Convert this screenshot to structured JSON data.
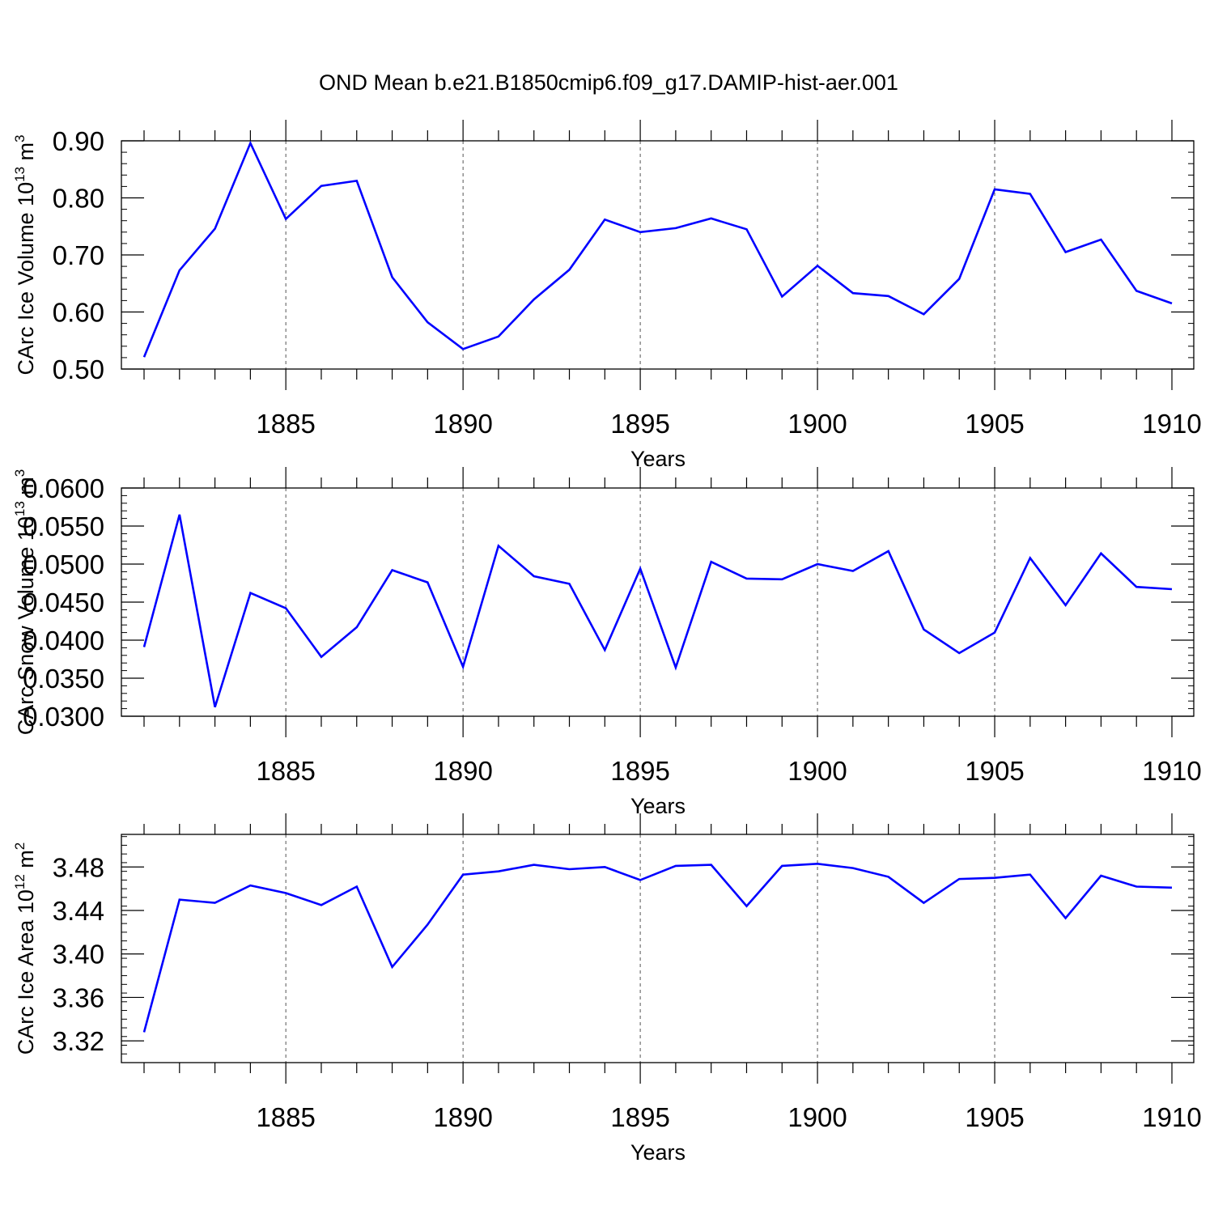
{
  "title": "OND Mean b.e21.B1850cmip6.f09_g17.DAMIP-hist-aer.001",
  "colors": {
    "line": "#0000ff",
    "axis": "#000000",
    "grid": "#555555"
  },
  "chart_data": [
    {
      "type": "line",
      "ylabel_main": "CArc Ice Volume 10",
      "ylabel_exp": "13",
      "ylabel_unit": " m",
      "ylabel_unit_exp": "3",
      "xlabel": "Years",
      "xlim": [
        1881,
        1910
      ],
      "ylim": [
        0.5,
        0.9
      ],
      "ytick_values": [
        0.5,
        0.6,
        0.7,
        0.8,
        0.9
      ],
      "ytick_labels": [
        "0.50",
        "0.60",
        "0.70",
        "0.80",
        "0.90"
      ],
      "yminor_step": 0.02,
      "xtick_values": [
        1885,
        1890,
        1895,
        1900,
        1905,
        1910
      ],
      "xtick_labels": [
        "1885",
        "1890",
        "1895",
        "1900",
        "1905",
        "1910"
      ],
      "grid": "vertical-dashed-at-major-ticks",
      "series": [
        {
          "name": "CArc Ice Volume",
          "x": [
            1881,
            1882,
            1883,
            1884,
            1885,
            1886,
            1887,
            1888,
            1889,
            1890,
            1891,
            1892,
            1893,
            1894,
            1895,
            1896,
            1897,
            1898,
            1899,
            1900,
            1901,
            1902,
            1903,
            1904,
            1905,
            1906,
            1907,
            1908,
            1909,
            1910
          ],
          "values": [
            0.521,
            0.673,
            0.746,
            0.896,
            0.763,
            0.821,
            0.83,
            0.661,
            0.582,
            0.535,
            0.557,
            0.622,
            0.674,
            0.762,
            0.74,
            0.747,
            0.764,
            0.745,
            0.627,
            0.681,
            0.633,
            0.628,
            0.596,
            0.658,
            0.815,
            0.807,
            0.705,
            0.727,
            0.637,
            0.615
          ]
        }
      ]
    },
    {
      "type": "line",
      "ylabel_main": "CArc Snow Volume 10",
      "ylabel_exp": "13",
      "ylabel_unit": " m",
      "ylabel_unit_exp": "3",
      "xlabel": "Years",
      "xlim": [
        1881,
        1910
      ],
      "ylim": [
        0.03,
        0.06
      ],
      "ytick_values": [
        0.03,
        0.035,
        0.04,
        0.045,
        0.05,
        0.055,
        0.06
      ],
      "ytick_labels": [
        "0.0300",
        "0.0350",
        "0.0400",
        "0.0450",
        "0.0500",
        "0.0550",
        "0.0600"
      ],
      "yminor_step": 0.001,
      "xtick_values": [
        1885,
        1890,
        1895,
        1900,
        1905,
        1910
      ],
      "xtick_labels": [
        "1885",
        "1890",
        "1895",
        "1900",
        "1905",
        "1910"
      ],
      "grid": "vertical-dashed-at-major-ticks",
      "series": [
        {
          "name": "CArc Snow Volume",
          "x": [
            1881,
            1882,
            1883,
            1884,
            1885,
            1886,
            1887,
            1888,
            1889,
            1890,
            1891,
            1892,
            1893,
            1894,
            1895,
            1896,
            1897,
            1898,
            1899,
            1900,
            1901,
            1902,
            1903,
            1904,
            1905,
            1906,
            1907,
            1908,
            1909,
            1910
          ],
          "values": [
            0.0391,
            0.0565,
            0.0312,
            0.0462,
            0.0442,
            0.0378,
            0.0417,
            0.0492,
            0.0476,
            0.0365,
            0.0524,
            0.0484,
            0.0474,
            0.0387,
            0.0494,
            0.0364,
            0.0503,
            0.0481,
            0.048,
            0.05,
            0.0491,
            0.0517,
            0.0414,
            0.0383,
            0.041,
            0.0508,
            0.0446,
            0.0514,
            0.047,
            0.0467
          ]
        }
      ]
    },
    {
      "type": "line",
      "ylabel_main": "CArc Ice Area 10",
      "ylabel_exp": "12",
      "ylabel_unit": " m",
      "ylabel_unit_exp": "2",
      "xlabel": "Years",
      "xlim": [
        1881,
        1910
      ],
      "ylim": [
        3.3,
        3.51
      ],
      "ytick_values": [
        3.32,
        3.36,
        3.4,
        3.44,
        3.48
      ],
      "ytick_labels": [
        "3.32",
        "3.36",
        "3.40",
        "3.44",
        "3.48"
      ],
      "yminor_step": 0.008,
      "xtick_values": [
        1885,
        1890,
        1895,
        1900,
        1905,
        1910
      ],
      "xtick_labels": [
        "1885",
        "1890",
        "1895",
        "1900",
        "1905",
        "1910"
      ],
      "grid": "vertical-dashed-at-major-ticks",
      "series": [
        {
          "name": "CArc Ice Area",
          "x": [
            1881,
            1882,
            1883,
            1884,
            1885,
            1886,
            1887,
            1888,
            1889,
            1890,
            1891,
            1892,
            1893,
            1894,
            1895,
            1896,
            1897,
            1898,
            1899,
            1900,
            1901,
            1902,
            1903,
            1904,
            1905,
            1906,
            1907,
            1908,
            1909,
            1910
          ],
          "values": [
            3.328,
            3.45,
            3.447,
            3.463,
            3.456,
            3.445,
            3.462,
            3.388,
            3.427,
            3.473,
            3.476,
            3.482,
            3.478,
            3.48,
            3.468,
            3.481,
            3.482,
            3.444,
            3.481,
            3.483,
            3.479,
            3.471,
            3.447,
            3.469,
            3.47,
            3.473,
            3.433,
            3.472,
            3.462,
            3.461
          ]
        }
      ]
    }
  ]
}
